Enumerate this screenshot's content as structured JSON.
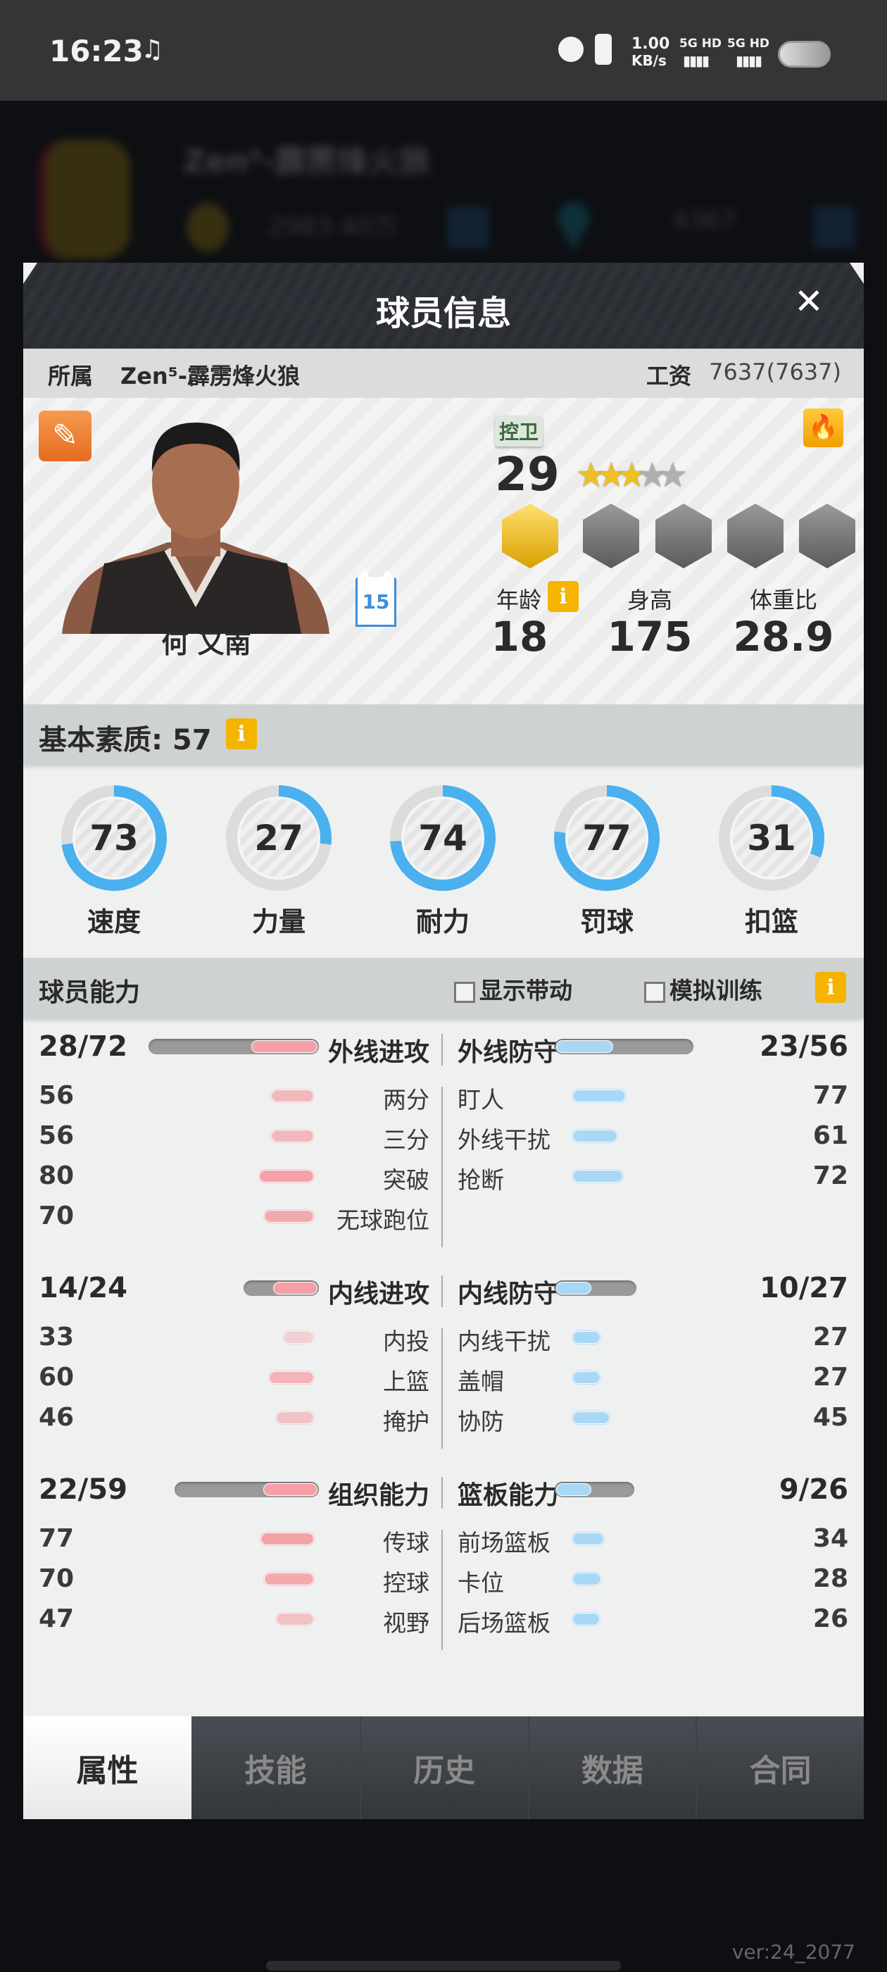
{
  "status_bar": {
    "time": "16:23",
    "net_speed": "1.00",
    "net_unit": "KB/s",
    "sim1": "5G HD",
    "sim2": "5G HD",
    "icons": [
      "music-note-icon",
      "alarm-icon",
      "vibrate-icon",
      "signal-icon",
      "battery-icon"
    ]
  },
  "background": {
    "team_name": "Zen⁵-霹雳烽火狼",
    "coins": "2983.40万",
    "gems": "4367"
  },
  "modal": {
    "title": "球员信息",
    "close": "✕",
    "team_label": "所属",
    "team_value": "Zen⁵-霹雳烽火狼",
    "salary_label": "工资",
    "salary_value": "7637(7637)"
  },
  "player": {
    "name": "何 又南",
    "jersey_number": "15",
    "position": "控卫",
    "rating": "29",
    "stars": 3,
    "stars_max": 5,
    "badges_unlocked": 1,
    "badges_total": 5,
    "age_label": "年龄",
    "age": "18",
    "height_label": "身高",
    "height": "175",
    "weight_label": "体重比",
    "weight": "28.9",
    "info_icon": "i"
  },
  "basic": {
    "label": "基本素质: 57"
  },
  "attributes": [
    {
      "label": "速度",
      "value": 73
    },
    {
      "label": "力量",
      "value": 27
    },
    {
      "label": "耐力",
      "value": 74
    },
    {
      "label": "罚球",
      "value": 77
    },
    {
      "label": "扣篮",
      "value": 31
    }
  ],
  "abilities": {
    "title": "球员能力",
    "show_drive": "显示带动",
    "sim_training": "模拟训练",
    "colors": {
      "attack": "#f4a0a6",
      "defense": "#a8d8f5"
    },
    "groups": [
      {
        "left": {
          "label": "外线进攻",
          "score": "28/72",
          "cur": 28,
          "max": 72,
          "items": [
            {
              "label": "两分",
              "value": 56
            },
            {
              "label": "三分",
              "value": 56
            },
            {
              "label": "突破",
              "value": 80
            },
            {
              "label": "无球跑位",
              "value": 70
            }
          ]
        },
        "right": {
          "label": "外线防守",
          "score": "23/56",
          "cur": 23,
          "max": 56,
          "items": [
            {
              "label": "盯人",
              "value": 77
            },
            {
              "label": "外线干扰",
              "value": 61
            },
            {
              "label": "抢断",
              "value": 72
            }
          ]
        }
      },
      {
        "left": {
          "label": "内线进攻",
          "score": "14/24",
          "cur": 14,
          "max": 24,
          "items": [
            {
              "label": "内投",
              "value": 33
            },
            {
              "label": "上篮",
              "value": 60
            },
            {
              "label": "掩护",
              "value": 46
            }
          ]
        },
        "right": {
          "label": "内线防守",
          "score": "10/27",
          "cur": 10,
          "max": 27,
          "items": [
            {
              "label": "内线干扰",
              "value": 27
            },
            {
              "label": "盖帽",
              "value": 27
            },
            {
              "label": "协防",
              "value": 45
            }
          ]
        }
      },
      {
        "left": {
          "label": "组织能力",
          "score": "22/59",
          "cur": 22,
          "max": 59,
          "items": [
            {
              "label": "传球",
              "value": 77
            },
            {
              "label": "控球",
              "value": 70
            },
            {
              "label": "视野",
              "value": 47
            }
          ]
        },
        "right": {
          "label": "篮板能力",
          "score": "9/26",
          "cur": 9,
          "max": 26,
          "items": [
            {
              "label": "前场篮板",
              "value": 34
            },
            {
              "label": "卡位",
              "value": 28
            },
            {
              "label": "后场篮板",
              "value": 26
            }
          ]
        }
      }
    ]
  },
  "tabs": [
    {
      "label": "属性",
      "active": true
    },
    {
      "label": "技能",
      "active": false
    },
    {
      "label": "历史",
      "active": false
    },
    {
      "label": "数据",
      "active": false
    },
    {
      "label": "合同",
      "active": false
    }
  ],
  "version": "ver:24_2077"
}
